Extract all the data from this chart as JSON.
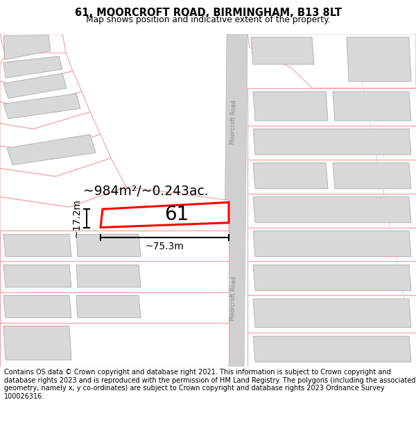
{
  "title": "61, MOORCROFT ROAD, BIRMINGHAM, B13 8LT",
  "subtitle": "Map shows position and indicative extent of the property.",
  "footer": "Contains OS data © Crown copyright and database right 2021. This information is subject to Crown copyright and database rights 2023 and is reproduced with the permission of HM Land Registry. The polygons (including the associated geometry, namely x, y co-ordinates) are subject to Crown copyright and database rights 2023 Ordnance Survey 100026316.",
  "area_text": "~984m²/~0.243ac.",
  "width_text": "~75.3m",
  "height_text": "~17.2m",
  "number_text": "61",
  "map_bg": "#ffffff",
  "plot_border": "#ff0000",
  "building_fill": "#d8d8d8",
  "parcel_border": "#f5a0a0",
  "road_fill": "#d0d0d0",
  "road_border": "#b0b0b0",
  "road_label": "Moorcroft Road",
  "road_label2": "Moorcroft Road"
}
